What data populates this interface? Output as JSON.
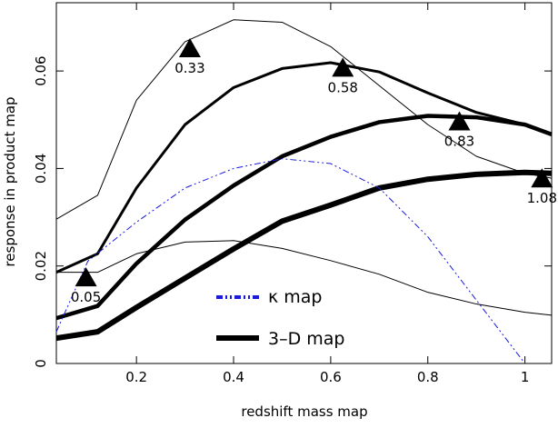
{
  "chart_data": {
    "type": "line",
    "xlabel": "redshift mass map",
    "ylabel": "response in product map",
    "xlim": [
      0.035,
      1.055
    ],
    "ylim": [
      0,
      0.074
    ],
    "xticks": [
      0.2,
      0.4,
      0.6,
      0.8,
      1
    ],
    "yticks": [
      0,
      0.02,
      0.04,
      0.06
    ],
    "series": [
      {
        "color": "#000000",
        "line_width": 1,
        "x": [
          0.035,
          0.12,
          0.2,
          0.3,
          0.4,
          0.5,
          0.6,
          0.7,
          0.8,
          0.9,
          1.0,
          1.055
        ],
        "values": [
          0.0296,
          0.0345,
          0.054,
          0.066,
          0.0705,
          0.07,
          0.065,
          0.057,
          0.049,
          0.0425,
          0.039,
          0.038
        ]
      },
      {
        "color": "#000000",
        "line_width": 3,
        "x": [
          0.035,
          0.12,
          0.2,
          0.3,
          0.4,
          0.5,
          0.6,
          0.7,
          0.8,
          0.9,
          1.0,
          1.055
        ],
        "values": [
          0.0187,
          0.0225,
          0.036,
          0.049,
          0.0566,
          0.0605,
          0.0617,
          0.0598,
          0.0555,
          0.0515,
          0.049,
          0.047
        ]
      },
      {
        "color": "#000000",
        "line_width": 4.5,
        "x": [
          0.035,
          0.12,
          0.2,
          0.3,
          0.4,
          0.5,
          0.6,
          0.7,
          0.8,
          0.9,
          1.0,
          1.055
        ],
        "values": [
          0.0093,
          0.0118,
          0.0205,
          0.0295,
          0.0365,
          0.0425,
          0.0465,
          0.0495,
          0.0508,
          0.0505,
          0.049,
          0.047
        ]
      },
      {
        "name": "3–D map",
        "color": "#000000",
        "line_width": 6,
        "x": [
          0.035,
          0.12,
          0.2,
          0.3,
          0.4,
          0.5,
          0.6,
          0.7,
          0.8,
          0.9,
          1.0,
          1.055
        ],
        "values": [
          0.0052,
          0.0065,
          0.0115,
          0.0175,
          0.0235,
          0.0292,
          0.0325,
          0.036,
          0.0378,
          0.0388,
          0.0392,
          0.039
        ]
      },
      {
        "color": "#000000",
        "line_width": 1,
        "x": [
          0.035,
          0.12,
          0.2,
          0.3,
          0.4,
          0.5,
          0.6,
          0.7,
          0.8,
          0.9,
          1.0,
          1.055
        ],
        "values": [
          0.0187,
          0.0187,
          0.0225,
          0.0249,
          0.0252,
          0.0236,
          0.0211,
          0.0183,
          0.0146,
          0.0122,
          0.0105,
          0.0099
        ]
      },
      {
        "name": "κ map",
        "color": "#1a1adb",
        "line_width": 1,
        "dash": "7 3 2 3 2 3",
        "x": [
          0.035,
          0.1,
          0.2,
          0.3,
          0.4,
          0.5,
          0.6,
          0.7,
          0.8,
          0.9,
          1.0
        ],
        "values": [
          0.0065,
          0.021,
          0.029,
          0.036,
          0.04,
          0.042,
          0.041,
          0.036,
          0.026,
          0.013,
          0.0
        ]
      }
    ],
    "markers": [
      {
        "label": "0.05",
        "x": 0.096,
        "y": 0.0175
      },
      {
        "label": "0.33",
        "x": 0.31,
        "y": 0.0645
      },
      {
        "label": "0.58",
        "x": 0.625,
        "y": 0.0605
      },
      {
        "label": "0.83",
        "x": 0.865,
        "y": 0.0495
      },
      {
        "label": "1.08",
        "x": 1.035,
        "y": 0.0378
      }
    ]
  }
}
